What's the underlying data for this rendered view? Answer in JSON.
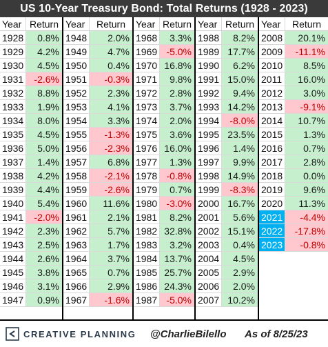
{
  "title": "US 10-Year Treasury Bond: Total Returns (1928 - 2023)",
  "header": {
    "year_label": "Year",
    "return_label": "Return"
  },
  "colors": {
    "positive_bg": "#c6efce",
    "negative_bg": "#ffc7ce",
    "negative_text": "#c00000",
    "highlight": "#00b0f0",
    "title_bg": "#3a3a3a"
  },
  "columns": [
    {
      "rows": [
        {
          "year": "1928",
          "ret": "0.8%"
        },
        {
          "year": "1929",
          "ret": "4.2%"
        },
        {
          "year": "1930",
          "ret": "4.5%"
        },
        {
          "year": "1931",
          "ret": "-2.6%"
        },
        {
          "year": "1932",
          "ret": "8.8%"
        },
        {
          "year": "1933",
          "ret": "1.9%"
        },
        {
          "year": "1934",
          "ret": "8.0%"
        },
        {
          "year": "1935",
          "ret": "4.5%"
        },
        {
          "year": "1936",
          "ret": "5.0%"
        },
        {
          "year": "1937",
          "ret": "1.4%"
        },
        {
          "year": "1938",
          "ret": "4.2%"
        },
        {
          "year": "1939",
          "ret": "4.4%"
        },
        {
          "year": "1940",
          "ret": "5.4%"
        },
        {
          "year": "1941",
          "ret": "-2.0%"
        },
        {
          "year": "1942",
          "ret": "2.3%"
        },
        {
          "year": "1943",
          "ret": "2.5%"
        },
        {
          "year": "1944",
          "ret": "2.6%"
        },
        {
          "year": "1945",
          "ret": "3.8%"
        },
        {
          "year": "1946",
          "ret": "3.1%"
        },
        {
          "year": "1947",
          "ret": "0.9%"
        }
      ]
    },
    {
      "rows": [
        {
          "year": "1948",
          "ret": "2.0%"
        },
        {
          "year": "1949",
          "ret": "4.7%"
        },
        {
          "year": "1950",
          "ret": "0.4%"
        },
        {
          "year": "1951",
          "ret": "-0.3%"
        },
        {
          "year": "1952",
          "ret": "2.3%"
        },
        {
          "year": "1953",
          "ret": "4.1%"
        },
        {
          "year": "1954",
          "ret": "3.3%"
        },
        {
          "year": "1955",
          "ret": "-1.3%"
        },
        {
          "year": "1956",
          "ret": "-2.3%"
        },
        {
          "year": "1957",
          "ret": "6.8%"
        },
        {
          "year": "1958",
          "ret": "-2.1%"
        },
        {
          "year": "1959",
          "ret": "-2.6%"
        },
        {
          "year": "1960",
          "ret": "11.6%"
        },
        {
          "year": "1961",
          "ret": "2.1%"
        },
        {
          "year": "1962",
          "ret": "5.7%"
        },
        {
          "year": "1963",
          "ret": "1.7%"
        },
        {
          "year": "1964",
          "ret": "3.7%"
        },
        {
          "year": "1965",
          "ret": "0.7%"
        },
        {
          "year": "1966",
          "ret": "2.9%"
        },
        {
          "year": "1967",
          "ret": "-1.6%"
        }
      ]
    },
    {
      "rows": [
        {
          "year": "1968",
          "ret": "3.3%"
        },
        {
          "year": "1969",
          "ret": "-5.0%"
        },
        {
          "year": "1970",
          "ret": "16.8%"
        },
        {
          "year": "1971",
          "ret": "9.8%"
        },
        {
          "year": "1972",
          "ret": "2.8%"
        },
        {
          "year": "1973",
          "ret": "3.7%"
        },
        {
          "year": "1974",
          "ret": "2.0%"
        },
        {
          "year": "1975",
          "ret": "3.6%"
        },
        {
          "year": "1976",
          "ret": "16.0%"
        },
        {
          "year": "1977",
          "ret": "1.3%"
        },
        {
          "year": "1978",
          "ret": "-0.8%"
        },
        {
          "year": "1979",
          "ret": "0.7%"
        },
        {
          "year": "1980",
          "ret": "-3.0%"
        },
        {
          "year": "1981",
          "ret": "8.2%"
        },
        {
          "year": "1982",
          "ret": "32.8%"
        },
        {
          "year": "1983",
          "ret": "3.2%"
        },
        {
          "year": "1984",
          "ret": "13.7%"
        },
        {
          "year": "1985",
          "ret": "25.7%"
        },
        {
          "year": "1986",
          "ret": "24.3%"
        },
        {
          "year": "1987",
          "ret": "-5.0%"
        }
      ]
    },
    {
      "rows": [
        {
          "year": "1988",
          "ret": "8.2%"
        },
        {
          "year": "1989",
          "ret": "17.7%"
        },
        {
          "year": "1990",
          "ret": "6.2%"
        },
        {
          "year": "1991",
          "ret": "15.0%"
        },
        {
          "year": "1992",
          "ret": "9.4%"
        },
        {
          "year": "1993",
          "ret": "14.2%"
        },
        {
          "year": "1994",
          "ret": "-8.0%"
        },
        {
          "year": "1995",
          "ret": "23.5%"
        },
        {
          "year": "1996",
          "ret": "1.4%"
        },
        {
          "year": "1997",
          "ret": "9.9%"
        },
        {
          "year": "1998",
          "ret": "14.9%"
        },
        {
          "year": "1999",
          "ret": "-8.3%"
        },
        {
          "year": "2000",
          "ret": "16.7%"
        },
        {
          "year": "2001",
          "ret": "5.6%"
        },
        {
          "year": "2002",
          "ret": "15.1%"
        },
        {
          "year": "2003",
          "ret": "0.4%"
        },
        {
          "year": "2004",
          "ret": "4.5%"
        },
        {
          "year": "2005",
          "ret": "2.9%"
        },
        {
          "year": "2006",
          "ret": "2.0%"
        },
        {
          "year": "2007",
          "ret": "10.2%"
        }
      ]
    },
    {
      "rows": [
        {
          "year": "2008",
          "ret": "20.1%"
        },
        {
          "year": "2009",
          "ret": "-11.1%"
        },
        {
          "year": "2010",
          "ret": "8.5%"
        },
        {
          "year": "2011",
          "ret": "16.0%"
        },
        {
          "year": "2012",
          "ret": "3.0%"
        },
        {
          "year": "2013",
          "ret": "-9.1%"
        },
        {
          "year": "2014",
          "ret": "10.7%"
        },
        {
          "year": "2015",
          "ret": "1.3%"
        },
        {
          "year": "2016",
          "ret": "0.7%"
        },
        {
          "year": "2017",
          "ret": "2.8%"
        },
        {
          "year": "2018",
          "ret": "0.0%"
        },
        {
          "year": "2019",
          "ret": "9.6%"
        },
        {
          "year": "2020",
          "ret": "11.3%"
        },
        {
          "year": "2021",
          "ret": "-4.4%",
          "hl": true
        },
        {
          "year": "2022",
          "ret": "-17.8%",
          "hl": true
        },
        {
          "year": "2023",
          "ret": "-0.8%",
          "hl": true
        }
      ]
    }
  ],
  "footer": {
    "brand": "CREATIVE PLANNING",
    "brand_icon": "creative-planning-logo-icon",
    "handle": "@CharlieBilello",
    "as_of": "As of 8/25/23"
  }
}
